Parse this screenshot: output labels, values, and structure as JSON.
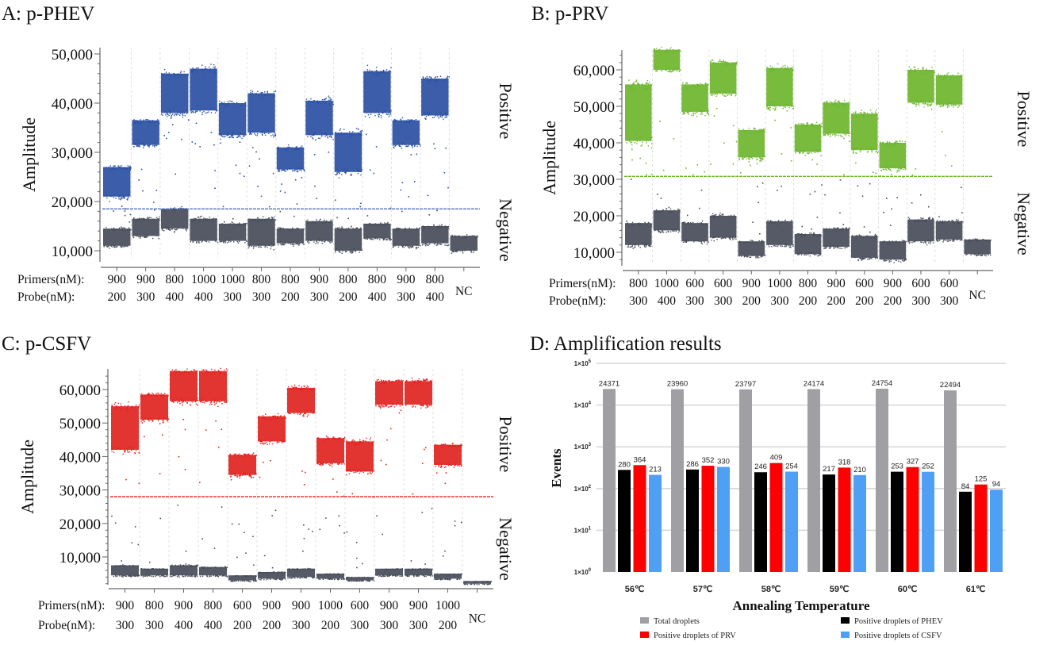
{
  "chart_data": [
    {
      "id": "A",
      "type": "scatter",
      "title": "A: p-PHEV",
      "ylabel": "Amplitude",
      "ylim": [
        8500,
        51000
      ],
      "yticks": [
        10000,
        20000,
        30000,
        40000,
        50000
      ],
      "ytick_labels": [
        "10,000",
        "20,000",
        "30,000",
        "40,000",
        "50,000"
      ],
      "threshold": 18500,
      "positive_color": "#2a4fa3",
      "negative_color": "#474c59",
      "threshold_color": "#5570b8",
      "region_labels": {
        "positive": "Positive",
        "negative": "Negative"
      },
      "row_labels": {
        "primers": "Primers(nM):",
        "probe": "Probe(nM):"
      },
      "wells": [
        {
          "primers": "900",
          "probe": "200",
          "positive": [
            21000,
            27000
          ],
          "negative": [
            11000,
            14500
          ]
        },
        {
          "primers": "900",
          "probe": "300",
          "positive": [
            31500,
            36500
          ],
          "negative": [
            13000,
            16500
          ]
        },
        {
          "primers": "800",
          "probe": "400",
          "positive": [
            38000,
            46000
          ],
          "negative": [
            14500,
            18500
          ]
        },
        {
          "primers": "1000",
          "probe": "400",
          "positive": [
            38500,
            47000
          ],
          "negative": [
            12000,
            16500
          ]
        },
        {
          "primers": "1000",
          "probe": "300",
          "positive": [
            33500,
            40000
          ],
          "negative": [
            12000,
            15500
          ]
        },
        {
          "primers": "800",
          "probe": "300",
          "positive": [
            34000,
            42000
          ],
          "negative": [
            11000,
            16500
          ]
        },
        {
          "primers": "800",
          "probe": "200",
          "positive": [
            26500,
            31000
          ],
          "negative": [
            11500,
            14500
          ]
        },
        {
          "primers": "900",
          "probe": "300",
          "positive": [
            33500,
            40500
          ],
          "negative": [
            12000,
            16000
          ]
        },
        {
          "primers": "800",
          "probe": "200",
          "positive": [
            26000,
            34000
          ],
          "negative": [
            10000,
            14500
          ]
        },
        {
          "primers": "800",
          "probe": "400",
          "positive": [
            38000,
            46500
          ],
          "negative": [
            12500,
            15500
          ]
        },
        {
          "primers": "900",
          "probe": "300",
          "positive": [
            31500,
            36500
          ],
          "negative": [
            11000,
            14500
          ]
        },
        {
          "primers": "800",
          "probe": "400",
          "positive": [
            37500,
            45000
          ],
          "negative": [
            11500,
            15000
          ]
        },
        {
          "primers": "NC",
          "probe": "",
          "positive": null,
          "negative": [
            10000,
            13000
          ]
        }
      ]
    },
    {
      "id": "B",
      "type": "scatter",
      "title": "B: p-PRV",
      "ylabel": "Amplitude",
      "ylim": [
        6000,
        65500
      ],
      "yticks": [
        10000,
        20000,
        30000,
        40000,
        50000,
        60000
      ],
      "ytick_labels": [
        "10,000",
        "20,000",
        "30,000",
        "40,000",
        "50,000",
        "60,000"
      ],
      "threshold": 30800,
      "positive_color": "#6cb52d",
      "negative_color": "#474c59",
      "threshold_color": "#6cb52d",
      "region_labels": {
        "positive": "Positive",
        "negative": "Negative"
      },
      "row_labels": {
        "primers": "Primers(nM):",
        "probe": "Probe(nM):"
      },
      "wells": [
        {
          "primers": "800",
          "probe": "300",
          "positive": [
            40500,
            56000
          ],
          "negative": [
            12000,
            18000
          ]
        },
        {
          "primers": "1000",
          "probe": "400",
          "positive": [
            60000,
            65500
          ],
          "negative": [
            16000,
            21500
          ]
        },
        {
          "primers": "600",
          "probe": "300",
          "positive": [
            48500,
            56000
          ],
          "negative": [
            13000,
            18000
          ]
        },
        {
          "primers": "600",
          "probe": "300",
          "positive": [
            53500,
            62000
          ],
          "negative": [
            14000,
            20000
          ]
        },
        {
          "primers": "900",
          "probe": "200",
          "positive": [
            36000,
            43500
          ],
          "negative": [
            9000,
            13000
          ]
        },
        {
          "primers": "1000",
          "probe": "300",
          "positive": [
            50000,
            60500
          ],
          "negative": [
            12000,
            18500
          ]
        },
        {
          "primers": "800",
          "probe": "200",
          "positive": [
            37500,
            45000
          ],
          "negative": [
            9500,
            15000
          ]
        },
        {
          "primers": "900",
          "probe": "200",
          "positive": [
            42500,
            51000
          ],
          "negative": [
            11500,
            16500
          ]
        },
        {
          "primers": "600",
          "probe": "200",
          "positive": [
            38000,
            48000
          ],
          "negative": [
            8500,
            14500
          ]
        },
        {
          "primers": "900",
          "probe": "200",
          "positive": [
            33000,
            40000
          ],
          "negative": [
            8000,
            13000
          ]
        },
        {
          "primers": "600",
          "probe": "300",
          "positive": [
            51000,
            60000
          ],
          "negative": [
            13000,
            19000
          ]
        },
        {
          "primers": "600",
          "probe": "300",
          "positive": [
            50500,
            58500
          ],
          "negative": [
            13500,
            18500
          ]
        },
        {
          "primers": "NC",
          "probe": "",
          "positive": null,
          "negative": [
            9500,
            13500
          ]
        }
      ]
    },
    {
      "id": "C",
      "type": "scatter",
      "title": "C: p-CSFV",
      "ylabel": "Amplitude",
      "ylim": [
        1500,
        65500
      ],
      "yticks": [
        10000,
        20000,
        30000,
        40000,
        50000,
        60000
      ],
      "ytick_labels": [
        "10,000",
        "20,000",
        "30,000",
        "40,000",
        "50,000",
        "60,000"
      ],
      "threshold": 28000,
      "positive_color": "#e0231f",
      "negative_color": "#474c59",
      "threshold_color": "#e0231f",
      "region_labels": {
        "positive": "Positive",
        "negative": "Negative"
      },
      "row_labels": {
        "primers": "Primers(nM):",
        "probe": "Probe(nM):"
      },
      "wells": [
        {
          "primers": "900",
          "probe": "300",
          "positive": [
            42000,
            55000
          ],
          "negative": [
            4500,
            7500
          ]
        },
        {
          "primers": "800",
          "probe": "300",
          "positive": [
            51000,
            58500
          ],
          "negative": [
            4500,
            6500
          ]
        },
        {
          "primers": "900",
          "probe": "400",
          "positive": [
            56500,
            65500
          ],
          "negative": [
            4500,
            7500
          ]
        },
        {
          "primers": "800",
          "probe": "400",
          "positive": [
            56500,
            65500
          ],
          "negative": [
            4500,
            7000
          ]
        },
        {
          "primers": "600",
          "probe": "200",
          "positive": [
            34500,
            40500
          ],
          "negative": [
            3000,
            4500
          ]
        },
        {
          "primers": "900",
          "probe": "200",
          "positive": [
            44500,
            52000
          ],
          "negative": [
            3500,
            5500
          ]
        },
        {
          "primers": "900",
          "probe": "300",
          "positive": [
            53000,
            60500
          ],
          "negative": [
            4000,
            6500
          ]
        },
        {
          "primers": "1000",
          "probe": "200",
          "positive": [
            38000,
            45500
          ],
          "negative": [
            3500,
            5000
          ]
        },
        {
          "primers": "600",
          "probe": "300",
          "positive": [
            35500,
            44500
          ],
          "negative": [
            3000,
            4000
          ]
        },
        {
          "primers": "900",
          "probe": "300",
          "positive": [
            55500,
            62500
          ],
          "negative": [
            4500,
            6500
          ]
        },
        {
          "primers": "900",
          "probe": "300",
          "positive": [
            55500,
            62500
          ],
          "negative": [
            4500,
            6500
          ]
        },
        {
          "primers": "1000",
          "probe": "200",
          "positive": [
            37500,
            43500
          ],
          "negative": [
            3500,
            5000
          ]
        },
        {
          "primers": "NC",
          "probe": "",
          "positive": null,
          "negative": [
            2000,
            2800
          ]
        }
      ]
    },
    {
      "id": "D",
      "type": "bar",
      "title": "D: Amplification results",
      "xlabel": "Annealing Temperature",
      "ylabel": "Events",
      "yscale": "log",
      "ylim": [
        1,
        100000
      ],
      "yticks": [
        1,
        10,
        100,
        1000,
        10000,
        100000
      ],
      "ytick_labels": [
        {
          "base": "1×10",
          "exp": "0"
        },
        {
          "base": "1×10",
          "exp": "1"
        },
        {
          "base": "1×10",
          "exp": "2"
        },
        {
          "base": "1×10",
          "exp": "3"
        },
        {
          "base": "1×10",
          "exp": "4"
        },
        {
          "base": "1×10",
          "exp": "5"
        }
      ],
      "grid": true,
      "legend_position": "bottom",
      "categories": [
        "56℃",
        "57℃",
        "58℃",
        "59℃",
        "60℃",
        "61℃"
      ],
      "series": [
        {
          "name": "Total droplets",
          "color": "#a0a0a4",
          "values": [
            24371,
            23960,
            23797,
            24174,
            24754,
            22494
          ]
        },
        {
          "name": "Positive droplets of PHEV",
          "color": "#000000",
          "values": [
            280,
            286,
            246,
            217,
            253,
            84
          ]
        },
        {
          "name": "Positive droplets of PRV",
          "color": "#ff0000",
          "values": [
            364,
            352,
            409,
            318,
            327,
            125
          ]
        },
        {
          "name": "Positive droplets of CSFV",
          "color": "#4f9ff5",
          "values": [
            213,
            330,
            254,
            210,
            252,
            94
          ]
        }
      ],
      "legend_order": [
        0,
        1,
        2,
        3
      ]
    }
  ]
}
